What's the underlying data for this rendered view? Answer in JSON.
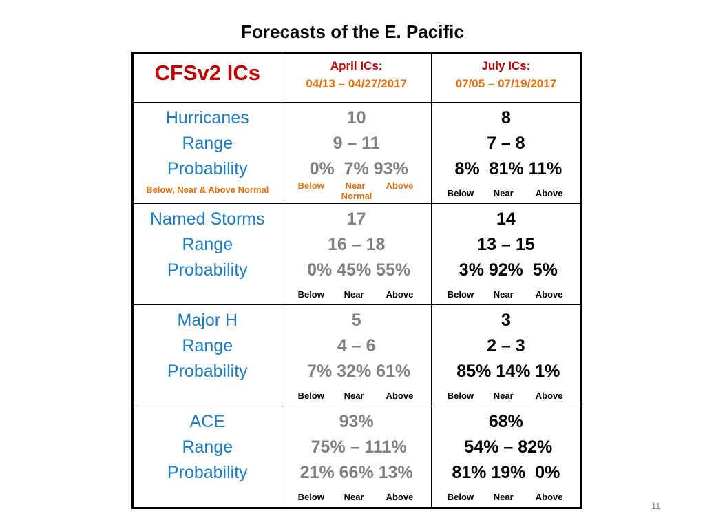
{
  "title": "Forecasts of the E. Pacific",
  "header": {
    "label": "CFSv2 ICs",
    "col2_label": "April ICs:",
    "col2_dates": "04/13 – 04/27/2017",
    "col3_label": "July ICs:",
    "col3_dates": "07/05 – 07/19/2017"
  },
  "rows": [
    {
      "labels": [
        "Hurricanes",
        "Range",
        "Probability"
      ],
      "note": "Below, Near & Above Normal",
      "april": [
        "10",
        "9 – 11",
        " 0%  7% 93%"
      ],
      "july": [
        "8",
        "7 – 8",
        " 8%  81% 11%"
      ],
      "april_bna": [
        "Below",
        "Near",
        "Above",
        "Normal"
      ],
      "july_bna": [
        "Below",
        "Near",
        "Above"
      ]
    },
    {
      "labels": [
        "Named Storms",
        "Range",
        "Probability"
      ],
      "april": [
        "17",
        "16 – 18",
        " 0% 45% 55%"
      ],
      "july": [
        "14",
        "13 – 15",
        " 3% 92%  5%"
      ],
      "april_bna": [
        "Below",
        "Near",
        "Above"
      ],
      "july_bna": [
        "Below",
        "Near",
        "Above"
      ]
    },
    {
      "labels": [
        "Major H",
        "Range",
        "Probability"
      ],
      "april": [
        "5",
        "4 – 6",
        " 7% 32% 61%"
      ],
      "july": [
        "3",
        "2 – 3",
        " 85% 14% 1%"
      ],
      "april_bna": [
        "Below",
        "Near",
        "Above"
      ],
      "july_bna": [
        "Below",
        "Near",
        "Above"
      ]
    },
    {
      "labels": [
        "ACE",
        "Range",
        "Probability"
      ],
      "april": [
        "93%",
        " 75% – 111%",
        "21% 66% 13%"
      ],
      "july": [
        "68%",
        " 54% – 82%",
        "81% 19%  0%"
      ],
      "april_bna": [
        "Below",
        "Near",
        "Above"
      ],
      "july_bna": [
        "Below",
        "Near",
        "Above"
      ]
    }
  ],
  "page_number": "11",
  "colors": {
    "header_red": "#c00000",
    "date_orange": "#e46c0a",
    "label_blue": "#1f7bbf",
    "april_gray": "#808080",
    "july_black": "#000000"
  }
}
